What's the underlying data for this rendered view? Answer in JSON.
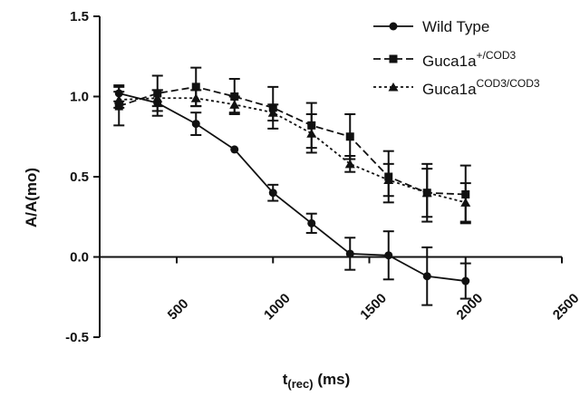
{
  "chart_data": {
    "type": "line",
    "xlabel_main": "t",
    "xlabel_sub": "(rec)",
    "xlabel_unit": " (ms)",
    "ylabel": "A/A(mo)",
    "xlim": [
      100,
      2500
    ],
    "ylim": [
      -0.5,
      1.5
    ],
    "x_ticks": [
      500,
      1000,
      1500,
      2000,
      2500
    ],
    "x_tick_labels": [
      "500",
      "1000",
      "1500",
      "2000",
      "2500"
    ],
    "y_ticks": [
      -0.5,
      0.0,
      0.5,
      1.0,
      1.5
    ],
    "y_tick_labels": [
      "-0.5",
      "0.0",
      "0.5",
      "1.0",
      "1.5"
    ],
    "x_axis_at_y": 0,
    "grid": false,
    "legend_position": "top-right",
    "series": [
      {
        "name": "Wild Type",
        "marker": "circle",
        "dash": "solid",
        "x": [
          200,
          400,
          600,
          800,
          1000,
          1200,
          1400,
          1600,
          1800,
          2000
        ],
        "y": [
          1.02,
          0.96,
          0.83,
          0.67,
          0.4,
          0.21,
          0.02,
          0.01,
          -0.12,
          -0.15
        ],
        "err": [
          0.05,
          0.08,
          0.07,
          0.0,
          0.05,
          0.06,
          0.1,
          0.15,
          0.18,
          0.11
        ]
      },
      {
        "name_main": "Guca1a",
        "name_sup": "+/COD3",
        "marker": "square",
        "dash": "long",
        "x": [
          200,
          400,
          600,
          800,
          1000,
          1200,
          1400,
          1600,
          1800,
          2000
        ],
        "y": [
          0.94,
          1.02,
          1.06,
          1.0,
          0.93,
          0.82,
          0.75,
          0.5,
          0.4,
          0.39
        ],
        "err": [
          0.12,
          0.11,
          0.12,
          0.11,
          0.13,
          0.14,
          0.14,
          0.16,
          0.18,
          0.18
        ]
      },
      {
        "name_main": "Guca1a",
        "name_sup": "COD3/COD3",
        "marker": "triangle",
        "dash": "short",
        "x": [
          200,
          400,
          600,
          800,
          1000,
          1200,
          1400,
          1600,
          1800,
          2000
        ],
        "y": [
          0.98,
          0.99,
          0.99,
          0.95,
          0.9,
          0.77,
          0.58,
          0.48,
          0.4,
          0.34
        ],
        "err": [
          0.05,
          0.05,
          0.05,
          0.05,
          0.05,
          0.12,
          0.05,
          0.1,
          0.15,
          0.12
        ]
      }
    ]
  }
}
